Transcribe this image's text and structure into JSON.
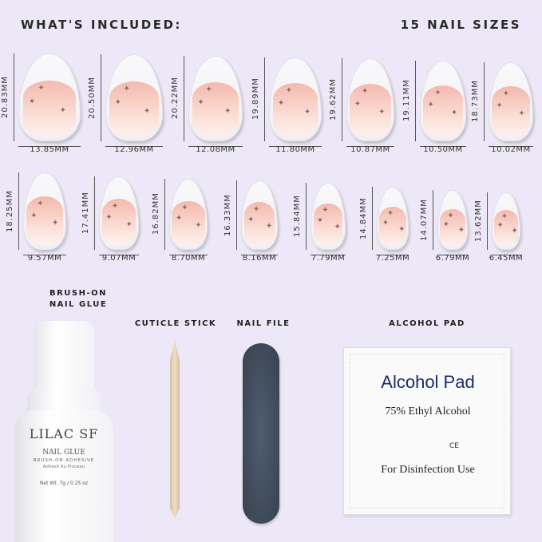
{
  "header": {
    "left": "WHAT'S INCLUDED:",
    "right": "15 NAIL SIZES"
  },
  "nails_row1": [
    {
      "height": "20.83MM",
      "width": "13.85MM"
    },
    {
      "height": "20.50MM",
      "width": "12.96MM"
    },
    {
      "height": "20.22MM",
      "width": "12.08MM"
    },
    {
      "height": "19.89MM",
      "width": "11.80MM"
    },
    {
      "height": "19.62MM",
      "width": "10.87MM"
    },
    {
      "height": "19.11MM",
      "width": "10.50MM"
    },
    {
      "height": "18.73MM",
      "width": "10.02MM"
    }
  ],
  "nails_row2": [
    {
      "height": "18.25MM",
      "width": "9.57MM"
    },
    {
      "height": "17.41MM",
      "width": "9.07MM"
    },
    {
      "height": "16.82MM",
      "width": "8.70MM"
    },
    {
      "height": "16.33MM",
      "width": "8.16MM"
    },
    {
      "height": "15.84MM",
      "width": "7.79MM"
    },
    {
      "height": "14.84MM",
      "width": "7.25MM"
    },
    {
      "height": "14.07MM",
      "width": "6.79MM"
    },
    {
      "height": "13.62MM",
      "width": "6.45MM"
    }
  ],
  "accessories": {
    "glue_label_1": "BRUSH-ON",
    "glue_label_2": "NAIL GLUE",
    "stick_label": "CUTICLE STICK",
    "file_label": "NAIL FILE",
    "pad_label": "ALCOHOL PAD"
  },
  "bottle": {
    "brand": "LILAC SF",
    "product": "NAIL GLUE",
    "sub": "BRUSH-ON ADHESIVE",
    "french": "Adhésif Au Pinceau",
    "net": "Net Wt. 7g / 0.25 oz"
  },
  "pad": {
    "title": "Alcohol Pad",
    "line1": "75% Ethyl Alcohol",
    "ce": "CE",
    "line2": "For Disinfection Use"
  }
}
